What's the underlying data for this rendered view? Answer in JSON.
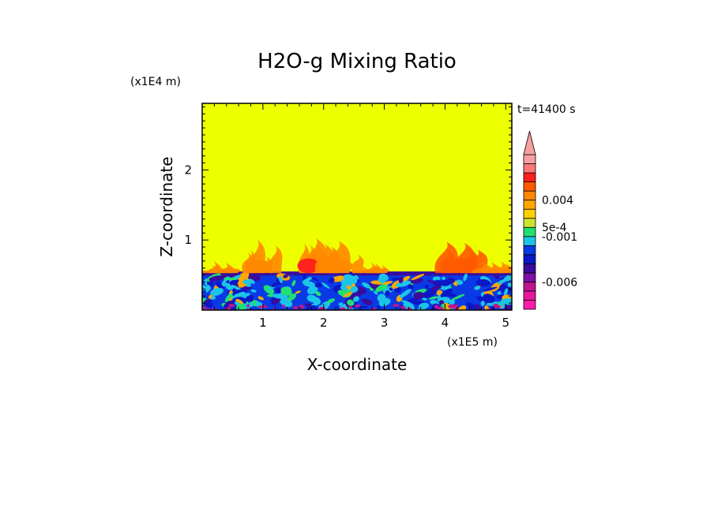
{
  "chart_data": {
    "type": "heatmap",
    "title": "H2O-g Mixing Ratio",
    "xlabel": "X-coordinate",
    "ylabel": "Z-coordinate",
    "x_scale_label": "(x1E5 m)",
    "y_scale_label": "(x1E4 m)",
    "time_label": "t=41400 s",
    "xlim": [
      0,
      5.1
    ],
    "ylim": [
      0,
      2.95
    ],
    "x_ticks": [
      {
        "value": 1,
        "label": "1"
      },
      {
        "value": 2,
        "label": "2"
      },
      {
        "value": 3,
        "label": "3"
      },
      {
        "value": 4,
        "label": "4"
      },
      {
        "value": 5,
        "label": "5"
      }
    ],
    "y_ticks": [
      {
        "value": 1,
        "label": "1"
      },
      {
        "value": 2,
        "label": "2"
      }
    ],
    "background_color": "#eeff00",
    "colorbar": {
      "colors": [
        "#ff1aa8",
        "#e8189e",
        "#c0168c",
        "#7d10a8",
        "#3a0c9c",
        "#0a18c8",
        "#0a3ae6",
        "#1cc4e8",
        "#22e070",
        "#cce430",
        "#ffd000",
        "#ffa800",
        "#ff8800",
        "#ff5a00",
        "#ff1e1e",
        "#ff7878",
        "#f8a0a0"
      ],
      "labels": [
        {
          "text": "0.004",
          "level": 12
        },
        {
          "text": "5e-4",
          "level": 9
        },
        {
          "text": "-0.001",
          "level": 8
        },
        {
          "text": "-0.006",
          "level": 3
        }
      ]
    },
    "anomaly_regions": [
      {
        "name": "boundary-layer-band",
        "x_range": [
          0,
          5.1
        ],
        "z_range": [
          0,
          0.55
        ],
        "values": "mixed negative (blue, cyan, green)"
      },
      {
        "name": "plume-1",
        "x": 0.45,
        "z_top": 0.7,
        "color": "#ff8800"
      },
      {
        "name": "plume-2",
        "x": 0.95,
        "z_top": 1.0,
        "color": "#ff8800"
      },
      {
        "name": "plume-3",
        "x": 1.75,
        "z_top": 1.05,
        "color": "#ff1e1e"
      },
      {
        "name": "plume-4",
        "x": 2.3,
        "z_top": 1.0,
        "color": "#ff8800"
      },
      {
        "name": "plume-5",
        "x": 2.9,
        "z_top": 0.7,
        "color": "#ff8800"
      },
      {
        "name": "plume-6",
        "x": 4.3,
        "z_top": 1.05,
        "color": "#ff5a00"
      },
      {
        "name": "plume-7",
        "x": 4.9,
        "z_top": 0.7,
        "color": "#ff8800"
      }
    ]
  }
}
